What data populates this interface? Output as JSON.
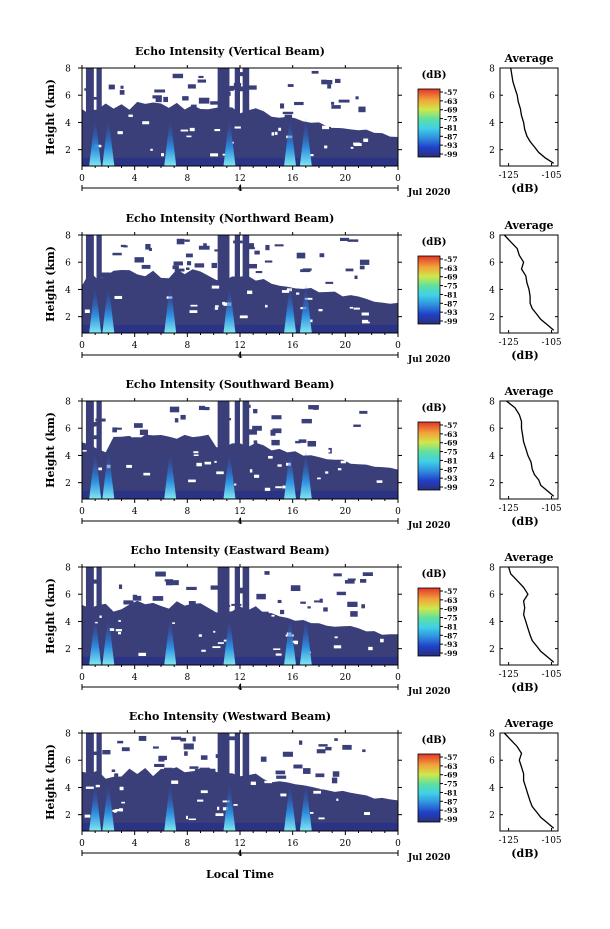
{
  "figure": {
    "xlabel": "Local Time",
    "date_label": "Jul 2020",
    "day_marker": "4",
    "colorbar_unit": "(dB)",
    "colorbar_ticks": [
      "-57",
      "-63",
      "-69",
      "-75",
      "-81",
      "-87",
      "-93",
      "-99"
    ],
    "colors": {
      "background": "#3a3f7a",
      "low": "#1f2a8c",
      "mid": "#2fb6e8",
      "high": "#e94a2f",
      "missing": "#ffffff"
    }
  },
  "chart_data": [
    {
      "type": "heatmap",
      "title": "Echo Intensity (Vertical Beam)",
      "ylabel": "Height (km)",
      "x_ticks": [
        "0",
        "4",
        "8",
        "12",
        "16",
        "20",
        "0"
      ],
      "y_ticks": [
        "2",
        "4",
        "6",
        "8"
      ],
      "xlim": [
        0,
        24
      ],
      "ylim": [
        0.8,
        8
      ],
      "colorbar_range": [
        -99,
        -57
      ],
      "profile": {
        "title": "Average",
        "xlabel": "(dB)",
        "x_ticks": [
          "-125",
          "-105"
        ],
        "y_ticks": [
          "2",
          "4",
          "6",
          "8"
        ],
        "xlim": [
          -129,
          -102
        ],
        "ylim": [
          0.8,
          8
        ],
        "x": [
          -124,
          -123.5,
          -123,
          -122,
          -121,
          -120.5,
          -119.5,
          -119,
          -118,
          -117.5,
          -116.5,
          -115,
          -113,
          -111,
          -108,
          -104
        ],
        "y": [
          8.0,
          7.5,
          7.0,
          6.5,
          6.0,
          5.5,
          5.0,
          4.5,
          4.0,
          3.5,
          3.0,
          2.6,
          2.2,
          1.8,
          1.4,
          1.0
        ]
      }
    },
    {
      "type": "heatmap",
      "title": "Echo Intensity (Northward Beam)",
      "ylabel": "Height (km)",
      "x_ticks": [
        "0",
        "4",
        "8",
        "12",
        "16",
        "20",
        "0"
      ],
      "y_ticks": [
        "2",
        "4",
        "6",
        "8"
      ],
      "xlim": [
        0,
        24
      ],
      "ylim": [
        0.8,
        8
      ],
      "colorbar_range": [
        -99,
        -57
      ],
      "profile": {
        "title": "Average",
        "xlabel": "(dB)",
        "x_ticks": [
          "-125",
          "-105"
        ],
        "y_ticks": [
          "2",
          "4",
          "6",
          "8"
        ],
        "xlim": [
          -129,
          -102
        ],
        "ylim": [
          0.8,
          8
        ],
        "x": [
          -127,
          -124,
          -121,
          -120,
          -118,
          -119,
          -117,
          -116.5,
          -115.5,
          -115,
          -115,
          -114,
          -112,
          -110,
          -107,
          -104
        ],
        "y": [
          8.0,
          7.5,
          7.0,
          6.5,
          6.0,
          5.5,
          5.0,
          4.5,
          4.0,
          3.5,
          3.0,
          2.6,
          2.2,
          1.8,
          1.4,
          1.0
        ]
      }
    },
    {
      "type": "heatmap",
      "title": "Echo Intensity (Southward Beam)",
      "ylabel": "Height (km)",
      "x_ticks": [
        "0",
        "4",
        "8",
        "12",
        "16",
        "20",
        "0"
      ],
      "y_ticks": [
        "2",
        "4",
        "6",
        "8"
      ],
      "xlim": [
        0,
        24
      ],
      "ylim": [
        0.8,
        8
      ],
      "colorbar_range": [
        -99,
        -57
      ],
      "profile": {
        "title": "Average",
        "xlabel": "(dB)",
        "x_ticks": [
          "-125",
          "-105"
        ],
        "y_ticks": [
          "2",
          "4",
          "6",
          "8"
        ],
        "xlim": [
          -129,
          -102
        ],
        "ylim": [
          0.8,
          8
        ],
        "x": [
          -126,
          -122,
          -120,
          -119,
          -119,
          -118.5,
          -118,
          -117,
          -116,
          -114.5,
          -114,
          -113,
          -111,
          -110,
          -107,
          -104
        ],
        "y": [
          8.0,
          7.5,
          7.0,
          6.5,
          6.0,
          5.5,
          5.0,
          4.5,
          4.0,
          3.5,
          3.0,
          2.6,
          2.2,
          1.8,
          1.4,
          1.0
        ]
      }
    },
    {
      "type": "heatmap",
      "title": "Echo Intensity (Eastward Beam)",
      "ylabel": "Height (km)",
      "x_ticks": [
        "0",
        "4",
        "8",
        "12",
        "16",
        "20",
        "0"
      ],
      "y_ticks": [
        "2",
        "4",
        "6",
        "8"
      ],
      "xlim": [
        0,
        24
      ],
      "ylim": [
        0.8,
        8
      ],
      "colorbar_range": [
        -99,
        -57
      ],
      "profile": {
        "title": "Average",
        "xlabel": "(dB)",
        "x_ticks": [
          "-125",
          "-105"
        ],
        "y_ticks": [
          "2",
          "4",
          "6",
          "8"
        ],
        "xlim": [
          -129,
          -102
        ],
        "ylim": [
          0.8,
          8
        ],
        "x": [
          -125,
          -124,
          -121,
          -118,
          -116,
          -118,
          -117.5,
          -118,
          -117,
          -116,
          -115,
          -114,
          -112,
          -110,
          -107,
          -104
        ],
        "y": [
          8.0,
          7.5,
          7.0,
          6.5,
          6.0,
          5.5,
          5.0,
          4.5,
          4.0,
          3.5,
          3.0,
          2.6,
          2.2,
          1.8,
          1.4,
          1.0
        ]
      }
    },
    {
      "type": "heatmap",
      "title": "Echo Intensity (Westward Beam)",
      "ylabel": "Height (km)",
      "x_ticks": [
        "0",
        "4",
        "8",
        "12",
        "16",
        "20",
        "0"
      ],
      "y_ticks": [
        "2",
        "4",
        "6",
        "8"
      ],
      "xlim": [
        0,
        24
      ],
      "ylim": [
        0.8,
        8
      ],
      "colorbar_range": [
        -99,
        -57
      ],
      "profile": {
        "title": "Average",
        "xlabel": "(dB)",
        "x_ticks": [
          "-125",
          "-105"
        ],
        "y_ticks": [
          "2",
          "4",
          "6",
          "8"
        ],
        "xlim": [
          -129,
          -102
        ],
        "ylim": [
          0.8,
          8
        ],
        "x": [
          -127,
          -124,
          -121,
          -119,
          -120,
          -119,
          -118,
          -118,
          -117,
          -116,
          -115,
          -114,
          -112,
          -110,
          -107,
          -104
        ],
        "y": [
          8.0,
          7.5,
          7.0,
          6.5,
          6.0,
          5.5,
          5.0,
          4.5,
          4.0,
          3.5,
          3.0,
          2.6,
          2.2,
          1.8,
          1.4,
          1.0
        ]
      }
    }
  ]
}
